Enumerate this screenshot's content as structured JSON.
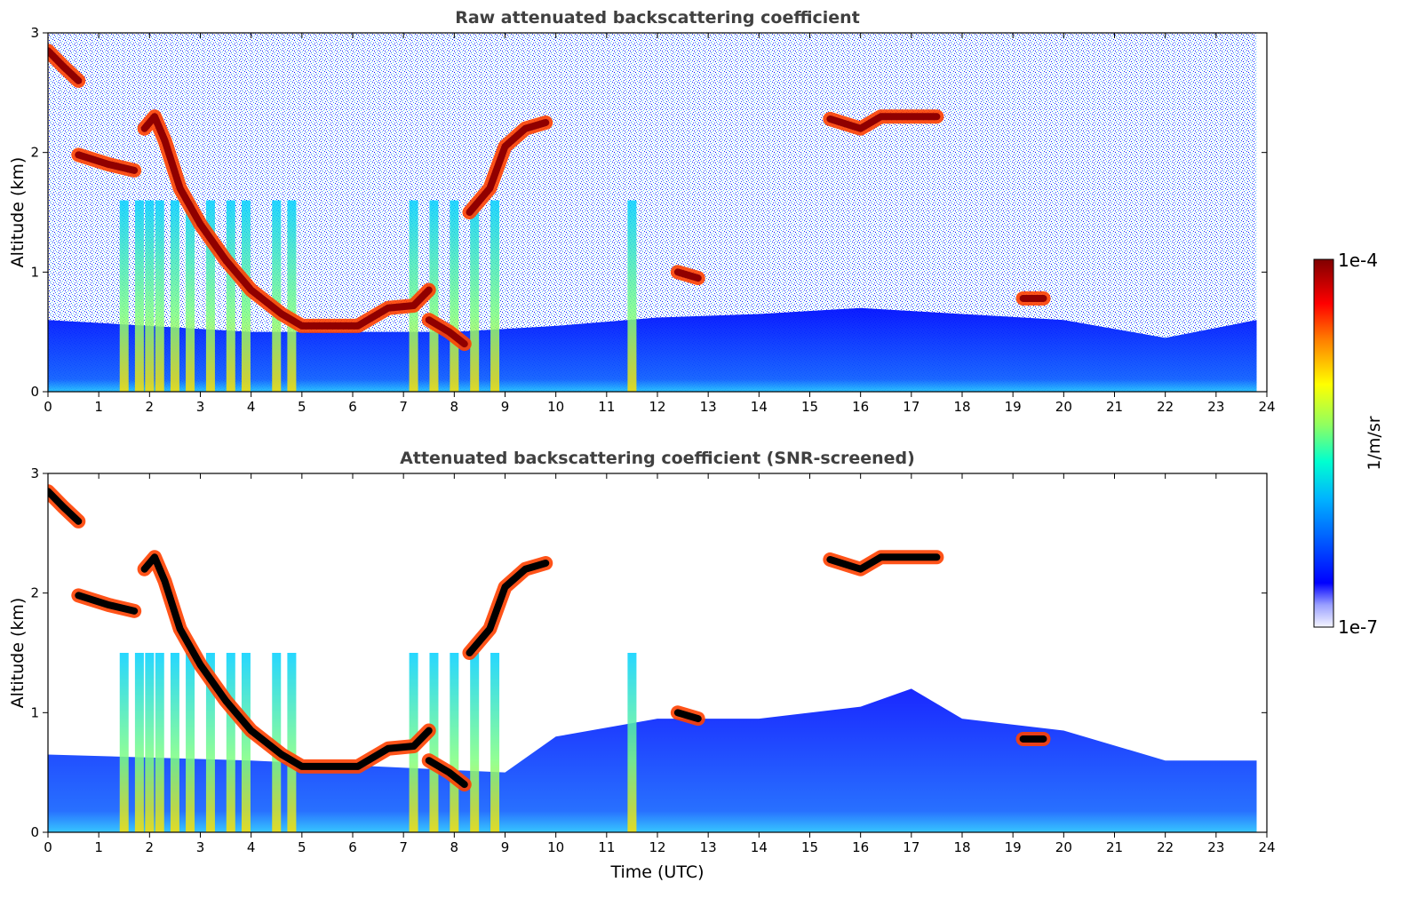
{
  "chart_data": [
    {
      "type": "heatmap",
      "title": "Raw attenuated backscattering coefficient",
      "xlabel": "",
      "ylabel": "Altitude (km)",
      "xlim": [
        0,
        24
      ],
      "ylim": [
        0,
        3
      ],
      "xticks": [
        "0",
        "1",
        "2",
        "3",
        "4",
        "5",
        "6",
        "7",
        "8",
        "9",
        "10",
        "11",
        "12",
        "13",
        "14",
        "15",
        "16",
        "17",
        "18",
        "19",
        "20",
        "21",
        "22",
        "23",
        "24"
      ],
      "yticks": [
        "0",
        "1",
        "2",
        "3"
      ],
      "data_end_hour": 23.8,
      "boundary_layer_top_km": [
        [
          0,
          0.6
        ],
        [
          2,
          0.55
        ],
        [
          4,
          0.5
        ],
        [
          6,
          0.5
        ],
        [
          8,
          0.5
        ],
        [
          10,
          0.55
        ],
        [
          12,
          0.62
        ],
        [
          14,
          0.65
        ],
        [
          16,
          0.7
        ],
        [
          18,
          0.65
        ],
        [
          20,
          0.6
        ],
        [
          22,
          0.45
        ],
        [
          23.8,
          0.6
        ]
      ],
      "cloud_layers": [
        {
          "points": [
            [
              0,
              2.85
            ],
            [
              0.3,
              2.72
            ],
            [
              0.6,
              2.6
            ]
          ]
        },
        {
          "points": [
            [
              0.6,
              1.98
            ],
            [
              1.2,
              1.9
            ],
            [
              1.7,
              1.85
            ]
          ]
        },
        {
          "points": [
            [
              1.9,
              2.2
            ],
            [
              2.1,
              2.3
            ],
            [
              2.3,
              2.1
            ],
            [
              2.6,
              1.7
            ],
            [
              3.0,
              1.4
            ],
            [
              3.5,
              1.1
            ],
            [
              4.0,
              0.85
            ],
            [
              4.6,
              0.65
            ],
            [
              5.0,
              0.55
            ],
            [
              6.1,
              0.55
            ],
            [
              6.7,
              0.7
            ],
            [
              7.2,
              0.72
            ],
            [
              7.5,
              0.85
            ]
          ]
        },
        {
          "points": [
            [
              7.5,
              0.6
            ],
            [
              7.9,
              0.5
            ],
            [
              8.2,
              0.4
            ]
          ]
        },
        {
          "points": [
            [
              8.3,
              1.5
            ],
            [
              8.7,
              1.7
            ],
            [
              9.0,
              2.05
            ],
            [
              9.4,
              2.2
            ],
            [
              9.8,
              2.25
            ]
          ]
        },
        {
          "points": [
            [
              12.4,
              1.0
            ],
            [
              12.8,
              0.95
            ]
          ]
        },
        {
          "points": [
            [
              15.4,
              2.28
            ],
            [
              16.0,
              2.2
            ],
            [
              16.4,
              2.3
            ],
            [
              17.5,
              2.3
            ]
          ]
        },
        {
          "points": [
            [
              19.2,
              0.78
            ],
            [
              19.6,
              0.78
            ]
          ]
        }
      ],
      "vertical_precipitation": [
        1.5,
        1.8,
        2.0,
        2.2,
        2.5,
        2.8,
        3.2,
        3.6,
        3.9,
        4.5,
        4.8,
        7.2,
        7.6,
        8.0,
        8.4,
        8.8,
        11.5
      ],
      "colorbar": {
        "label": "1/m/sr",
        "min_label": "1e-7",
        "max_label": "1e-4"
      }
    },
    {
      "type": "heatmap",
      "title": "Attenuated backscattering coefficient (SNR-screened)",
      "xlabel": "Time (UTC)",
      "ylabel": "Altitude (km)",
      "xlim": [
        0,
        24
      ],
      "ylim": [
        0,
        3
      ],
      "xticks": [
        "0",
        "1",
        "2",
        "3",
        "4",
        "5",
        "6",
        "7",
        "8",
        "9",
        "10",
        "11",
        "12",
        "13",
        "14",
        "15",
        "16",
        "17",
        "18",
        "19",
        "20",
        "21",
        "22",
        "23",
        "24"
      ],
      "yticks": [
        "0",
        "1",
        "2",
        "3"
      ],
      "screened_mask_top_km": [
        [
          0,
          0.65
        ],
        [
          4,
          0.6
        ],
        [
          9,
          0.5
        ],
        [
          10,
          0.8
        ],
        [
          12,
          0.95
        ],
        [
          14,
          0.95
        ],
        [
          16,
          1.05
        ],
        [
          17,
          1.2
        ],
        [
          18,
          0.95
        ],
        [
          20,
          0.85
        ],
        [
          22,
          0.6
        ],
        [
          23.8,
          0.6
        ]
      ]
    }
  ],
  "colors": {
    "background": "#ffffff",
    "title": "#404040",
    "jet_low": "#00008f",
    "jet_high": "#800000",
    "saturated": "#000000"
  }
}
